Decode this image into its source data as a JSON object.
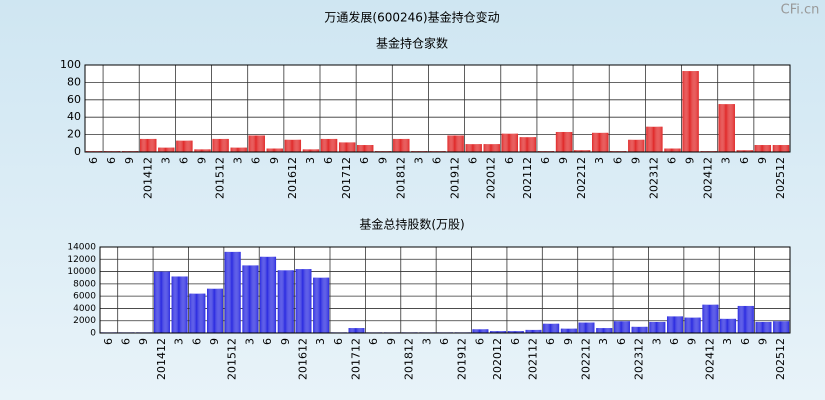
{
  "title": "万通发展(600246)基金持仓变动",
  "watermark": "CFi.cn",
  "chart_data": [
    {
      "type": "bar",
      "title": "基金持仓家数",
      "categories": [
        "6",
        "6",
        "9",
        "201412",
        "3",
        "6",
        "9",
        "201512",
        "3",
        "6",
        "9",
        "201612",
        "3",
        "6",
        "201712",
        "6",
        "9",
        "201812",
        "3",
        "6",
        "201912",
        "6",
        "202012",
        "6",
        "202112",
        "6",
        "9",
        "202212",
        "3",
        "6",
        "9",
        "202312",
        "6",
        "9",
        "202412",
        "3",
        "6",
        "9",
        "202512"
      ],
      "values": [
        1,
        1,
        1,
        15,
        5,
        13,
        3,
        15,
        5,
        19,
        4,
        14,
        3,
        15,
        11,
        8,
        1,
        15,
        1,
        1,
        19,
        9,
        9,
        21,
        17,
        1,
        23,
        2,
        22,
        1,
        14,
        29,
        4,
        93,
        1,
        55,
        2,
        8,
        8
      ],
      "color": "#e02828",
      "ylim": [
        0,
        100
      ],
      "yticks": [
        0,
        20,
        40,
        60,
        80,
        100
      ],
      "grid": true
    },
    {
      "type": "bar",
      "title": "基金总持股数(万股)",
      "categories": [
        "6",
        "6",
        "9",
        "201412",
        "3",
        "6",
        "9",
        "201512",
        "3",
        "6",
        "9",
        "201612",
        "3",
        "6",
        "201712",
        "6",
        "9",
        "201812",
        "3",
        "6",
        "201912",
        "6",
        "202012",
        "6",
        "202112",
        "6",
        "9",
        "202212",
        "3",
        "6",
        "202312",
        "3",
        "6",
        "9",
        "202412",
        "3",
        "6",
        "9",
        "202512"
      ],
      "values": [
        100,
        100,
        100,
        10000,
        9200,
        6400,
        7200,
        13200,
        11000,
        12400,
        10200,
        10400,
        9000,
        100,
        800,
        100,
        100,
        100,
        100,
        100,
        100,
        600,
        300,
        300,
        500,
        1500,
        700,
        1700,
        800,
        1900,
        1000,
        1800,
        2700,
        2500,
        4600,
        2300,
        4400,
        1800,
        1900
      ],
      "color": "#2a2ae0",
      "ylim": [
        0,
        14000
      ],
      "yticks": [
        0,
        2000,
        4000,
        6000,
        8000,
        10000,
        12000,
        14000
      ],
      "grid": true
    }
  ]
}
